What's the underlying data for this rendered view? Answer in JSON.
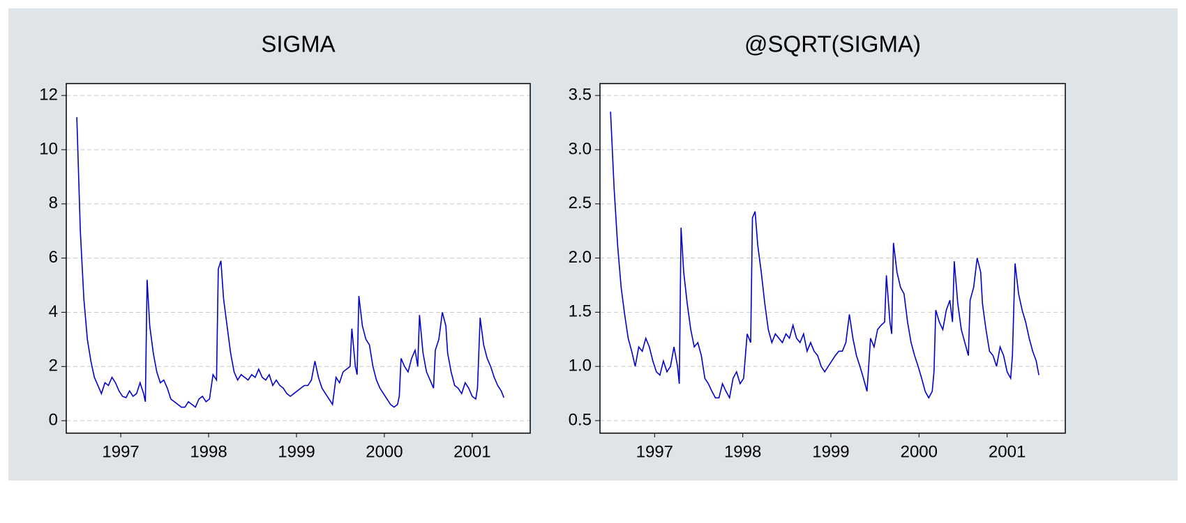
{
  "chart_data": [
    {
      "type": "line",
      "title": "SIGMA",
      "x": [
        1997.0,
        1997.04,
        1997.08,
        1997.12,
        1997.16,
        1997.2,
        1997.24,
        1997.28,
        1997.32,
        1997.36,
        1997.4,
        1997.44,
        1997.48,
        1997.52,
        1997.56,
        1997.6,
        1997.64,
        1997.68,
        1997.72,
        1997.76,
        1997.78,
        1997.8,
        1997.83,
        1997.87,
        1997.91,
        1997.95,
        1997.99,
        1998.03,
        1998.07,
        1998.11,
        1998.15,
        1998.19,
        1998.23,
        1998.27,
        1998.31,
        1998.35,
        1998.39,
        1998.43,
        1998.47,
        1998.51,
        1998.55,
        1998.59,
        1998.61,
        1998.64,
        1998.67,
        1998.71,
        1998.75,
        1998.79,
        1998.83,
        1998.87,
        1998.91,
        1998.95,
        1998.99,
        1999.03,
        1999.07,
        1999.11,
        1999.15,
        1999.19,
        1999.23,
        1999.27,
        1999.31,
        1999.35,
        1999.39,
        1999.43,
        1999.47,
        1999.51,
        1999.55,
        1999.59,
        1999.63,
        1999.67,
        1999.71,
        1999.75,
        1999.79,
        1999.83,
        1999.87,
        1999.91,
        1999.95,
        1999.99,
        2000.03,
        2000.07,
        2000.11,
        2000.13,
        2000.17,
        2000.19,
        2000.21,
        2000.25,
        2000.29,
        2000.33,
        2000.37,
        2000.41,
        2000.45,
        2000.49,
        2000.53,
        2000.57,
        2000.61,
        2000.65,
        2000.67,
        2000.69,
        2000.73,
        2000.77,
        2000.81,
        2000.85,
        2000.88,
        2000.9,
        2000.94,
        2000.98,
        2001.02,
        2001.06,
        2001.08,
        2001.12,
        2001.16,
        2001.2,
        2001.22,
        2001.26,
        2001.3,
        2001.34,
        2001.38,
        2001.42,
        2001.46,
        2001.5,
        2001.54,
        2001.56,
        2001.59,
        2001.63,
        2001.67,
        2001.71,
        2001.75,
        2001.79,
        2001.83,
        2001.86
      ],
      "series": [
        {
          "name": "SIGMA",
          "color": "#0000cc",
          "values": [
            11.2,
            7.0,
            4.5,
            3.0,
            2.2,
            1.6,
            1.3,
            1.0,
            1.4,
            1.3,
            1.6,
            1.4,
            1.1,
            0.9,
            0.85,
            1.1,
            0.9,
            1.0,
            1.4,
            1.0,
            0.7,
            5.2,
            3.5,
            2.5,
            1.8,
            1.4,
            1.5,
            1.2,
            0.8,
            0.7,
            0.6,
            0.5,
            0.5,
            0.7,
            0.6,
            0.5,
            0.8,
            0.9,
            0.7,
            0.8,
            1.7,
            1.5,
            5.6,
            5.9,
            4.5,
            3.5,
            2.5,
            1.8,
            1.5,
            1.7,
            1.6,
            1.5,
            1.7,
            1.6,
            1.9,
            1.6,
            1.5,
            1.7,
            1.3,
            1.5,
            1.3,
            1.2,
            1.0,
            0.9,
            1.0,
            1.1,
            1.2,
            1.3,
            1.3,
            1.5,
            2.2,
            1.6,
            1.2,
            1.0,
            0.8,
            0.6,
            1.6,
            1.4,
            1.8,
            1.9,
            2.0,
            3.4,
            2.0,
            1.7,
            4.6,
            3.5,
            3.0,
            2.8,
            2.0,
            1.5,
            1.2,
            1.0,
            0.8,
            0.6,
            0.5,
            0.6,
            0.9,
            2.3,
            2.0,
            1.8,
            2.3,
            2.6,
            2.0,
            3.9,
            2.5,
            1.8,
            1.5,
            1.2,
            2.6,
            3.0,
            4.0,
            3.5,
            2.5,
            1.8,
            1.3,
            1.2,
            1.0,
            1.4,
            1.2,
            0.9,
            0.8,
            1.2,
            3.8,
            2.8,
            2.3,
            2.0,
            1.6,
            1.3,
            1.1,
            0.85
          ]
        }
      ],
      "xlim": [
        1996.88,
        2002.16
      ],
      "xticks": [
        {
          "value": 1997.5,
          "label": "1997"
        },
        {
          "value": 1998.5,
          "label": "1998"
        },
        {
          "value": 1999.5,
          "label": "1999"
        },
        {
          "value": 2000.5,
          "label": "2000"
        },
        {
          "value": 2001.5,
          "label": "2001"
        }
      ],
      "ylim": [
        -0.46,
        12.44
      ],
      "yticks": [
        0,
        2,
        4,
        6,
        8,
        10,
        12
      ],
      "grid": true
    },
    {
      "type": "line",
      "title": "@SQRT(SIGMA)",
      "x": [
        1997.0,
        1997.04,
        1997.08,
        1997.12,
        1997.16,
        1997.2,
        1997.24,
        1997.28,
        1997.32,
        1997.36,
        1997.4,
        1997.44,
        1997.48,
        1997.52,
        1997.56,
        1997.6,
        1997.64,
        1997.68,
        1997.72,
        1997.76,
        1997.78,
        1997.8,
        1997.83,
        1997.87,
        1997.91,
        1997.95,
        1997.99,
        1998.03,
        1998.07,
        1998.11,
        1998.15,
        1998.19,
        1998.23,
        1998.27,
        1998.31,
        1998.35,
        1998.39,
        1998.43,
        1998.47,
        1998.51,
        1998.55,
        1998.59,
        1998.61,
        1998.64,
        1998.67,
        1998.71,
        1998.75,
        1998.79,
        1998.83,
        1998.87,
        1998.91,
        1998.95,
        1998.99,
        1999.03,
        1999.07,
        1999.11,
        1999.15,
        1999.19,
        1999.23,
        1999.27,
        1999.31,
        1999.35,
        1999.39,
        1999.43,
        1999.47,
        1999.51,
        1999.55,
        1999.59,
        1999.63,
        1999.67,
        1999.71,
        1999.75,
        1999.79,
        1999.83,
        1999.87,
        1999.91,
        1999.95,
        1999.99,
        2000.03,
        2000.07,
        2000.11,
        2000.13,
        2000.17,
        2000.19,
        2000.21,
        2000.25,
        2000.29,
        2000.33,
        2000.37,
        2000.41,
        2000.45,
        2000.49,
        2000.53,
        2000.57,
        2000.61,
        2000.65,
        2000.67,
        2000.69,
        2000.73,
        2000.77,
        2000.81,
        2000.85,
        2000.88,
        2000.9,
        2000.94,
        2000.98,
        2001.02,
        2001.06,
        2001.08,
        2001.12,
        2001.16,
        2001.2,
        2001.22,
        2001.26,
        2001.3,
        2001.34,
        2001.38,
        2001.42,
        2001.46,
        2001.5,
        2001.54,
        2001.56,
        2001.59,
        2001.63,
        2001.67,
        2001.71,
        2001.75,
        2001.79,
        2001.83,
        2001.86
      ],
      "series": [
        {
          "name": "@SQRT(SIGMA)",
          "color": "#0000cc",
          "values": [
            3.35,
            2.65,
            2.12,
            1.73,
            1.48,
            1.26,
            1.14,
            1.0,
            1.18,
            1.14,
            1.26,
            1.18,
            1.05,
            0.95,
            0.92,
            1.05,
            0.95,
            1.0,
            1.18,
            1.0,
            0.84,
            2.28,
            1.87,
            1.58,
            1.34,
            1.18,
            1.22,
            1.1,
            0.89,
            0.84,
            0.77,
            0.71,
            0.71,
            0.84,
            0.77,
            0.71,
            0.89,
            0.95,
            0.84,
            0.89,
            1.3,
            1.22,
            2.37,
            2.43,
            2.12,
            1.87,
            1.58,
            1.34,
            1.22,
            1.3,
            1.26,
            1.22,
            1.3,
            1.26,
            1.38,
            1.26,
            1.22,
            1.3,
            1.14,
            1.22,
            1.14,
            1.1,
            1.0,
            0.95,
            1.0,
            1.05,
            1.1,
            1.14,
            1.14,
            1.22,
            1.48,
            1.26,
            1.1,
            1.0,
            0.89,
            0.77,
            1.26,
            1.18,
            1.34,
            1.38,
            1.41,
            1.84,
            1.41,
            1.3,
            2.14,
            1.87,
            1.73,
            1.67,
            1.41,
            1.22,
            1.1,
            1.0,
            0.89,
            0.77,
            0.71,
            0.77,
            0.95,
            1.52,
            1.41,
            1.34,
            1.52,
            1.61,
            1.41,
            1.97,
            1.58,
            1.34,
            1.22,
            1.1,
            1.61,
            1.73,
            2.0,
            1.87,
            1.58,
            1.34,
            1.14,
            1.1,
            1.0,
            1.18,
            1.1,
            0.95,
            0.89,
            1.1,
            1.95,
            1.67,
            1.52,
            1.41,
            1.26,
            1.14,
            1.05,
            0.92
          ]
        }
      ],
      "xlim": [
        1996.88,
        2002.16
      ],
      "xticks": [
        {
          "value": 1997.5,
          "label": "1997"
        },
        {
          "value": 1998.5,
          "label": "1998"
        },
        {
          "value": 1999.5,
          "label": "1999"
        },
        {
          "value": 2000.5,
          "label": "2000"
        },
        {
          "value": 2001.5,
          "label": "2001"
        }
      ],
      "ylim": [
        0.384,
        3.61
      ],
      "yticks": [
        {
          "value": 0.5,
          "label": "0.5"
        },
        {
          "value": 1.0,
          "label": "1.0"
        },
        {
          "value": 1.5,
          "label": "1.5"
        },
        {
          "value": 2.0,
          "label": "2.0"
        },
        {
          "value": 2.5,
          "label": "2.5"
        },
        {
          "value": 3.0,
          "label": "3.0"
        },
        {
          "value": 3.5,
          "label": "3.5"
        }
      ],
      "grid": true
    }
  ]
}
